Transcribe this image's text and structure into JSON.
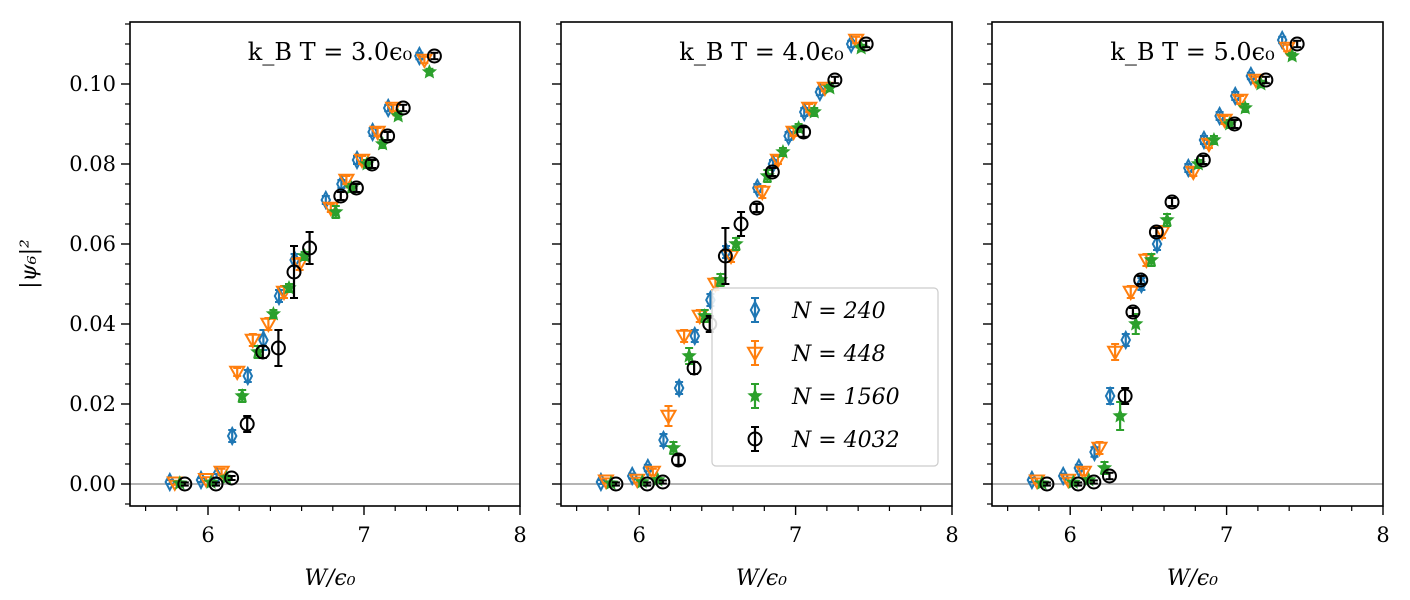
{
  "chart_data": {
    "type": "scatter",
    "ylabel": "|ψ₆|²",
    "xlabel": "W/ϵ₀",
    "xlim": [
      5.5,
      8.0
    ],
    "ylim": [
      -0.0055,
      0.1155
    ],
    "xticks": [
      "6",
      "7",
      "8"
    ],
    "yticks": [
      "0.00",
      "0.02",
      "0.04",
      "0.06",
      "0.08",
      "0.10"
    ],
    "reference_line_y": 0,
    "legend": {
      "placement": "center-right of middle panel",
      "entries": [
        "N = 240",
        "N = 448",
        "N = 1560",
        "N = 4032"
      ]
    },
    "series_styles": [
      {
        "name": "N = 240",
        "color": "#1f77b4",
        "marker": "diamond-open"
      },
      {
        "name": "N = 448",
        "color": "#ff7f0e",
        "marker": "triangle-down-open"
      },
      {
        "name": "N = 1560",
        "color": "#2ca02c",
        "marker": "star-filled"
      },
      {
        "name": "N = 4032",
        "color": "#000000",
        "marker": "circle-open"
      }
    ],
    "panels": [
      {
        "title": "k_B T = 3.0ϵ₀",
        "series": [
          {
            "name": "N = 240",
            "points": [
              [
                5.8,
                0.0005,
                0.0005
              ],
              [
                6.0,
                0.001,
                0.0005
              ],
              [
                6.1,
                0.002,
                0.0005
              ],
              [
                6.2,
                0.012,
                0.0015
              ],
              [
                6.3,
                0.027,
                0.0015
              ],
              [
                6.4,
                0.036,
                0.0025
              ],
              [
                6.5,
                0.047,
                0.0015
              ],
              [
                6.6,
                0.056,
                0.0015
              ],
              [
                6.8,
                0.071,
                0.001
              ],
              [
                6.9,
                0.075,
                0.001
              ],
              [
                7.0,
                0.081,
                0.001
              ],
              [
                7.1,
                0.088,
                0.001
              ],
              [
                7.2,
                0.094,
                0.0008
              ],
              [
                7.4,
                0.107,
                0.0008
              ]
            ]
          },
          {
            "name": "N = 448",
            "points": [
              [
                5.8,
                0.0003,
                0.0005
              ],
              [
                6.0,
                0.0012,
                0.0005
              ],
              [
                6.1,
                0.003,
                0.0008
              ],
              [
                6.2,
                0.028,
                0.001
              ],
              [
                6.3,
                0.036,
                0.0015
              ],
              [
                6.4,
                0.04,
                0.0015
              ],
              [
                6.5,
                0.048,
                0.0015
              ],
              [
                6.6,
                0.055,
                0.0015
              ],
              [
                6.8,
                0.069,
                0.001
              ],
              [
                6.9,
                0.076,
                0.001
              ],
              [
                7.0,
                0.081,
                0.001
              ],
              [
                7.1,
                0.088,
                0.001
              ],
              [
                7.2,
                0.094,
                0.0008
              ],
              [
                7.4,
                0.106,
                0.0008
              ]
            ]
          },
          {
            "name": "N = 1560",
            "points": [
              [
                5.8,
                0.0002,
                0.0004
              ],
              [
                6.0,
                0.0004,
                0.0004
              ],
              [
                6.1,
                0.0015,
                0.0006
              ],
              [
                6.2,
                0.022,
                0.0015
              ],
              [
                6.3,
                0.033,
                0.0015
              ],
              [
                6.4,
                0.0425,
                0.001
              ],
              [
                6.5,
                0.049,
                0.001
              ],
              [
                6.6,
                0.057,
                0.001
              ],
              [
                6.8,
                0.068,
                0.0015
              ],
              [
                6.9,
                0.074,
                0.001
              ],
              [
                7.0,
                0.08,
                0.001
              ],
              [
                7.1,
                0.085,
                0.001
              ],
              [
                7.2,
                0.092,
                0.0008
              ],
              [
                7.4,
                0.103,
                0.0008
              ]
            ]
          },
          {
            "name": "N = 4032",
            "points": [
              [
                5.8,
                0.0,
                0.0004
              ],
              [
                6.0,
                0.0,
                0.0004
              ],
              [
                6.1,
                0.0015,
                0.0005
              ],
              [
                6.2,
                0.015,
                0.002
              ],
              [
                6.3,
                0.033,
                0.0015
              ],
              [
                6.4,
                0.034,
                0.0045
              ],
              [
                6.5,
                0.053,
                0.0065
              ],
              [
                6.6,
                0.059,
                0.004
              ],
              [
                6.8,
                0.072,
                0.001
              ],
              [
                6.9,
                0.074,
                0.001
              ],
              [
                7.0,
                0.08,
                0.001
              ],
              [
                7.1,
                0.087,
                0.001
              ],
              [
                7.2,
                0.094,
                0.0008
              ],
              [
                7.4,
                0.107,
                0.0008
              ]
            ]
          }
        ]
      },
      {
        "title": "k_B T = 4.0ϵ₀",
        "series": [
          {
            "name": "N = 240",
            "points": [
              [
                5.8,
                0.0005,
                0.0005
              ],
              [
                6.0,
                0.002,
                0.0006
              ],
              [
                6.1,
                0.004,
                0.0008
              ],
              [
                6.2,
                0.011,
                0.0015
              ],
              [
                6.3,
                0.024,
                0.0015
              ],
              [
                6.4,
                0.037,
                0.0015
              ],
              [
                6.5,
                0.046,
                0.0015
              ],
              [
                6.6,
                0.058,
                0.0015
              ],
              [
                6.8,
                0.074,
                0.001
              ],
              [
                6.9,
                0.08,
                0.001
              ],
              [
                7.0,
                0.087,
                0.001
              ],
              [
                7.1,
                0.093,
                0.001
              ],
              [
                7.2,
                0.098,
                0.0008
              ],
              [
                7.4,
                0.11,
                0.0008
              ]
            ]
          },
          {
            "name": "N = 448",
            "points": [
              [
                5.8,
                0.0008,
                0.0006
              ],
              [
                6.0,
                0.001,
                0.0006
              ],
              [
                6.1,
                0.003,
                0.0008
              ],
              [
                6.2,
                0.017,
                0.0025
              ],
              [
                6.3,
                0.037,
                0.0015
              ],
              [
                6.4,
                0.042,
                0.0015
              ],
              [
                6.5,
                0.05,
                0.0015
              ],
              [
                6.6,
                0.057,
                0.0015
              ],
              [
                6.8,
                0.073,
                0.0015
              ],
              [
                6.9,
                0.081,
                0.001
              ],
              [
                7.0,
                0.088,
                0.001
              ],
              [
                7.1,
                0.094,
                0.001
              ],
              [
                7.2,
                0.099,
                0.0008
              ],
              [
                7.4,
                0.111,
                0.0008
              ]
            ]
          },
          {
            "name": "N = 1560",
            "points": [
              [
                5.8,
                0.0002,
                0.0004
              ],
              [
                6.0,
                0.0005,
                0.0004
              ],
              [
                6.1,
                0.001,
                0.0005
              ],
              [
                6.2,
                0.009,
                0.0015
              ],
              [
                6.3,
                0.032,
                0.002
              ],
              [
                6.4,
                0.042,
                0.0015
              ],
              [
                6.5,
                0.051,
                0.0015
              ],
              [
                6.6,
                0.06,
                0.0015
              ],
              [
                6.8,
                0.077,
                0.0015
              ],
              [
                6.9,
                0.083,
                0.001
              ],
              [
                7.0,
                0.089,
                0.001
              ],
              [
                7.1,
                0.093,
                0.001
              ],
              [
                7.2,
                0.099,
                0.0008
              ],
              [
                7.4,
                0.109,
                0.0008
              ]
            ]
          },
          {
            "name": "N = 4032",
            "points": [
              [
                5.8,
                0.0,
                0.0004
              ],
              [
                6.0,
                0.0,
                0.0004
              ],
              [
                6.1,
                0.0005,
                0.0004
              ],
              [
                6.2,
                0.006,
                0.0012
              ],
              [
                6.3,
                0.029,
                0.0015
              ],
              [
                6.4,
                0.04,
                0.002
              ],
              [
                6.5,
                0.057,
                0.007
              ],
              [
                6.6,
                0.065,
                0.003
              ],
              [
                6.7,
                0.069,
                0.001
              ],
              [
                6.8,
                0.078,
                0.001
              ],
              [
                7.0,
                0.088,
                0.0012
              ],
              [
                7.2,
                0.101,
                0.0008
              ],
              [
                7.4,
                0.11,
                0.0008
              ]
            ]
          }
        ]
      },
      {
        "title": "k_B T = 5.0ϵ₀",
        "series": [
          {
            "name": "N = 240",
            "points": [
              [
                5.8,
                0.001,
                0.0005
              ],
              [
                6.0,
                0.002,
                0.0006
              ],
              [
                6.1,
                0.004,
                0.0008
              ],
              [
                6.2,
                0.008,
                0.0012
              ],
              [
                6.3,
                0.022,
                0.002
              ],
              [
                6.4,
                0.036,
                0.0015
              ],
              [
                6.5,
                0.05,
                0.0015
              ],
              [
                6.6,
                0.06,
                0.0015
              ],
              [
                6.8,
                0.079,
                0.001
              ],
              [
                6.9,
                0.086,
                0.001
              ],
              [
                7.0,
                0.092,
                0.001
              ],
              [
                7.1,
                0.097,
                0.001
              ],
              [
                7.2,
                0.102,
                0.0008
              ],
              [
                7.4,
                0.111,
                0.0008
              ]
            ]
          },
          {
            "name": "N = 448",
            "points": [
              [
                5.8,
                0.0008,
                0.0006
              ],
              [
                6.0,
                0.001,
                0.0006
              ],
              [
                6.1,
                0.003,
                0.0008
              ],
              [
                6.2,
                0.009,
                0.0015
              ],
              [
                6.3,
                0.033,
                0.002
              ],
              [
                6.4,
                0.048,
                0.0015
              ],
              [
                6.5,
                0.056,
                0.0015
              ],
              [
                6.6,
                0.063,
                0.0015
              ],
              [
                6.8,
                0.078,
                0.001
              ],
              [
                6.9,
                0.085,
                0.001
              ],
              [
                7.0,
                0.091,
                0.001
              ],
              [
                7.1,
                0.096,
                0.001
              ],
              [
                7.2,
                0.101,
                0.0008
              ],
              [
                7.4,
                0.109,
                0.0008
              ]
            ]
          },
          {
            "name": "N = 1560",
            "points": [
              [
                5.8,
                0.0002,
                0.0004
              ],
              [
                6.0,
                0.0004,
                0.0004
              ],
              [
                6.1,
                0.001,
                0.0005
              ],
              [
                6.2,
                0.004,
                0.0015
              ],
              [
                6.3,
                0.017,
                0.0035
              ],
              [
                6.4,
                0.04,
                0.0025
              ],
              [
                6.5,
                0.056,
                0.0015
              ],
              [
                6.6,
                0.066,
                0.0015
              ],
              [
                6.8,
                0.08,
                0.001
              ],
              [
                6.9,
                0.086,
                0.001
              ],
              [
                7.0,
                0.09,
                0.001
              ],
              [
                7.1,
                0.094,
                0.001
              ],
              [
                7.2,
                0.1,
                0.0008
              ],
              [
                7.4,
                0.107,
                0.0008
              ]
            ]
          },
          {
            "name": "N = 4032",
            "points": [
              [
                5.8,
                0.0,
                0.0004
              ],
              [
                6.0,
                0.0,
                0.0004
              ],
              [
                6.1,
                0.0005,
                0.0004
              ],
              [
                6.2,
                0.002,
                0.0008
              ],
              [
                6.3,
                0.022,
                0.002
              ],
              [
                6.35,
                0.043,
                0.001
              ],
              [
                6.4,
                0.051,
                0.001
              ],
              [
                6.5,
                0.063,
                0.001
              ],
              [
                6.6,
                0.0705,
                0.001
              ],
              [
                6.8,
                0.081,
                0.001
              ],
              [
                7.0,
                0.09,
                0.001
              ],
              [
                7.2,
                0.101,
                0.0008
              ],
              [
                7.4,
                0.11,
                0.0008
              ]
            ]
          }
        ]
      }
    ]
  }
}
